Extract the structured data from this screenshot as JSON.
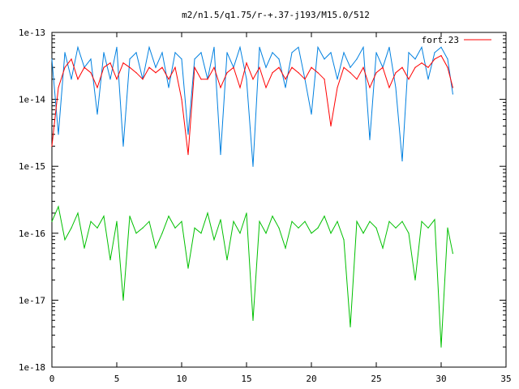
{
  "chart_data": {
    "type": "line",
    "title": "m2/n1.5/q1.75/r-+.37-j193/M15.0/512",
    "xlabel": "",
    "ylabel": "",
    "xlim": [
      0,
      35
    ],
    "ylim": [
      1e-18,
      1e-13
    ],
    "yscale": "log",
    "grid": false,
    "legend_position": "top-right",
    "x_ticks": [
      "0",
      "5",
      "10",
      "15",
      "20",
      "25",
      "30",
      "35"
    ],
    "y_ticks": [
      "1e-13",
      "1e-14",
      "1e-15",
      "1e-16",
      "1e-17",
      "1e-18"
    ],
    "x": [
      0.0,
      0.5,
      1.0,
      1.5,
      2.0,
      2.5,
      3.0,
      3.5,
      4.0,
      4.5,
      5.0,
      5.5,
      6.0,
      6.5,
      7.0,
      7.5,
      8.0,
      8.5,
      9.0,
      9.5,
      10.0,
      10.5,
      11.0,
      11.5,
      12.0,
      12.5,
      13.0,
      13.5,
      14.0,
      14.5,
      15.0,
      15.5,
      16.0,
      16.5,
      17.0,
      17.5,
      18.0,
      18.5,
      19.0,
      19.5,
      20.0,
      20.5,
      21.0,
      21.5,
      22.0,
      22.5,
      23.0,
      23.5,
      24.0,
      24.5,
      25.0,
      25.5,
      26.0,
      26.5,
      27.0,
      27.5,
      28.0,
      28.5,
      29.0,
      29.5,
      30.0,
      30.5,
      30.9
    ],
    "series": [
      {
        "name": "fort.23",
        "color": "#ff0000",
        "values": [
          2e-15,
          1.5e-14,
          3e-14,
          4e-14,
          2e-14,
          3e-14,
          2.5e-14,
          1.5e-14,
          3e-14,
          3.5e-14,
          2e-14,
          3.5e-14,
          3e-14,
          2.5e-14,
          2e-14,
          3e-14,
          2.5e-14,
          3e-14,
          2e-14,
          3e-14,
          1e-14,
          1.5e-15,
          3e-14,
          2e-14,
          2e-14,
          3e-14,
          1.5e-14,
          2.5e-14,
          3e-14,
          1.5e-14,
          3.5e-14,
          2e-14,
          3e-14,
          1.5e-14,
          2.5e-14,
          3e-14,
          2e-14,
          3e-14,
          2.5e-14,
          2e-14,
          3e-14,
          2.5e-14,
          2e-14,
          4e-15,
          1.5e-14,
          3e-14,
          2.5e-14,
          2e-14,
          3e-14,
          1.5e-14,
          2.5e-14,
          3e-14,
          1.5e-14,
          2.5e-14,
          3e-14,
          2e-14,
          3e-14,
          3.5e-14,
          3e-14,
          4e-14,
          4.5e-14,
          3e-14,
          1.5e-14
        ]
      },
      {
        "name": "",
        "color": "#0080e0",
        "values": [
          4e-14,
          3e-15,
          5e-14,
          2e-14,
          6e-14,
          3e-14,
          4e-14,
          6e-15,
          5e-14,
          2e-14,
          6e-14,
          2e-15,
          4e-14,
          5e-14,
          2e-14,
          6e-14,
          3e-14,
          5e-14,
          1.5e-14,
          5e-14,
          4e-14,
          3e-15,
          4e-14,
          5e-14,
          2e-14,
          6e-14,
          1.5e-15,
          5e-14,
          3e-14,
          6e-14,
          2e-14,
          1e-15,
          6e-14,
          3e-14,
          5e-14,
          4e-14,
          1.5e-14,
          5e-14,
          6e-14,
          2e-14,
          6e-15,
          6e-14,
          4e-14,
          5e-14,
          2e-14,
          5e-14,
          3e-14,
          4e-14,
          6e-14,
          2.5e-15,
          5e-14,
          3e-14,
          6e-14,
          1.5e-14,
          1.2e-15,
          5e-14,
          4e-14,
          6e-14,
          2e-14,
          5e-14,
          6e-14,
          4e-14,
          1.2e-14
        ]
      },
      {
        "name": "",
        "color": "#00c000",
        "values": [
          1.5e-16,
          2.5e-16,
          8e-17,
          1.2e-16,
          2e-16,
          6e-17,
          1.5e-16,
          1.2e-16,
          1.8e-16,
          4e-17,
          1.5e-16,
          1e-17,
          1.8e-16,
          1e-16,
          1.2e-16,
          1.5e-16,
          6e-17,
          1e-16,
          1.8e-16,
          1.2e-16,
          1.5e-16,
          3e-17,
          1.2e-16,
          1e-16,
          2e-16,
          8e-17,
          1.6e-16,
          4e-17,
          1.5e-16,
          1e-16,
          2e-16,
          5e-18,
          1.5e-16,
          1e-16,
          1.8e-16,
          1.2e-16,
          6e-17,
          1.5e-16,
          1.2e-16,
          1.5e-16,
          1e-16,
          1.2e-16,
          1.8e-16,
          1e-16,
          1.5e-16,
          8e-17,
          4e-18,
          1.5e-16,
          1e-16,
          1.5e-16,
          1.2e-16,
          6e-17,
          1.5e-16,
          1.2e-16,
          1.5e-16,
          1e-16,
          2e-17,
          1.5e-16,
          1.2e-16,
          1.6e-16,
          2e-18,
          1.2e-16,
          5e-17
        ]
      }
    ]
  }
}
